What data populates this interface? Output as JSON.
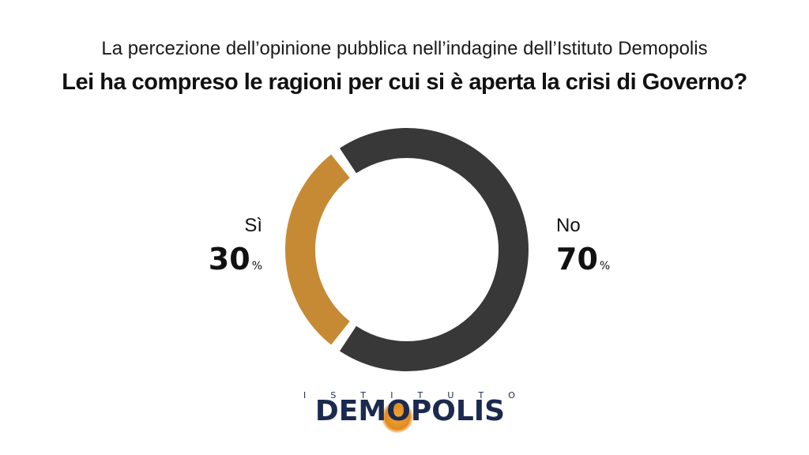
{
  "header": {
    "subtitle": "La percezione dell’opinione pubblica nell’indagine dell’Istituto Demopolis",
    "title": "Lei ha compreso le ragioni per cui si è aperta la crisi di Governo?"
  },
  "chart_data": {
    "type": "pie",
    "donut": true,
    "categories": [
      "Sì",
      "No"
    ],
    "values": [
      30,
      70
    ],
    "value_suffix": "%",
    "colors": [
      "#c68a35",
      "#383838"
    ],
    "labels": [
      {
        "name": "Sì",
        "value": "30",
        "unit": "%"
      },
      {
        "name": "No",
        "value": "70",
        "unit": "%"
      }
    ]
  },
  "logo": {
    "top": [
      "I",
      "S",
      "T",
      "I",
      "T",
      "U",
      "T",
      "O"
    ],
    "word_pre": "DEM",
    "word_o": "O",
    "word_post": "POLIS"
  }
}
